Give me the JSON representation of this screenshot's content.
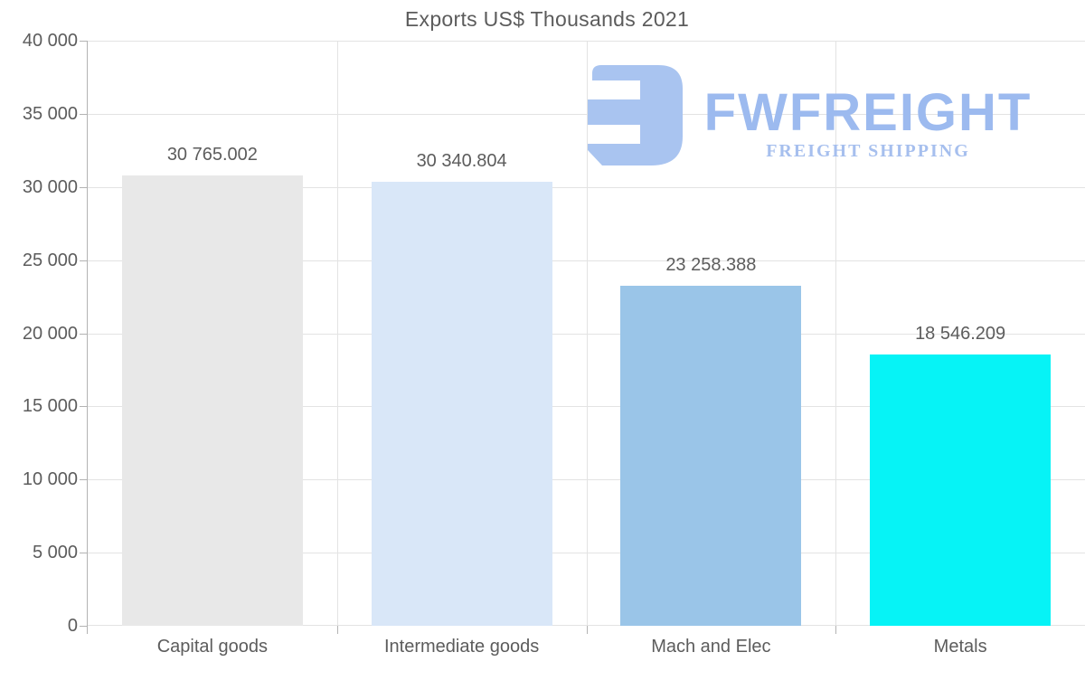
{
  "chart_data": {
    "type": "bar",
    "title": "Exports US$ Thousands 2021",
    "categories": [
      "Capital goods",
      "Intermediate goods",
      "Mach and Elec",
      "Metals"
    ],
    "values": [
      30765.002,
      30340.804,
      23258.388,
      18546.209
    ],
    "value_labels": [
      "30 765.002",
      "30 340.804",
      "23 258.388",
      "18 546.209"
    ],
    "bar_colors": [
      "#e8e8e8",
      "#d9e7f8",
      "#9ac5e8",
      "#06f3f6"
    ],
    "ylim": [
      0,
      40000
    ],
    "ytick_step": 5000,
    "ytick_labels": [
      "0",
      "5 000",
      "10 000",
      "15 000",
      "20 000",
      "25 000",
      "30 000",
      "35 000",
      "40 000"
    ],
    "xlabel": "",
    "ylabel": "",
    "grid": true,
    "legend_position": "none"
  },
  "watermark": {
    "brand": "FWFREIGHT",
    "tagline": "FREIGHT SHIPPING",
    "icon": "fwfreight-monogram-icon",
    "icon_color": "#a9c4f0",
    "brand_color": "#9cbaef",
    "tagline_color": "#a6bfee"
  },
  "style": {
    "background": "#ffffff",
    "text_color": "#5c5c5c",
    "gridline_color": "#e3e3e3",
    "axis_color": "#b3b3b3"
  }
}
